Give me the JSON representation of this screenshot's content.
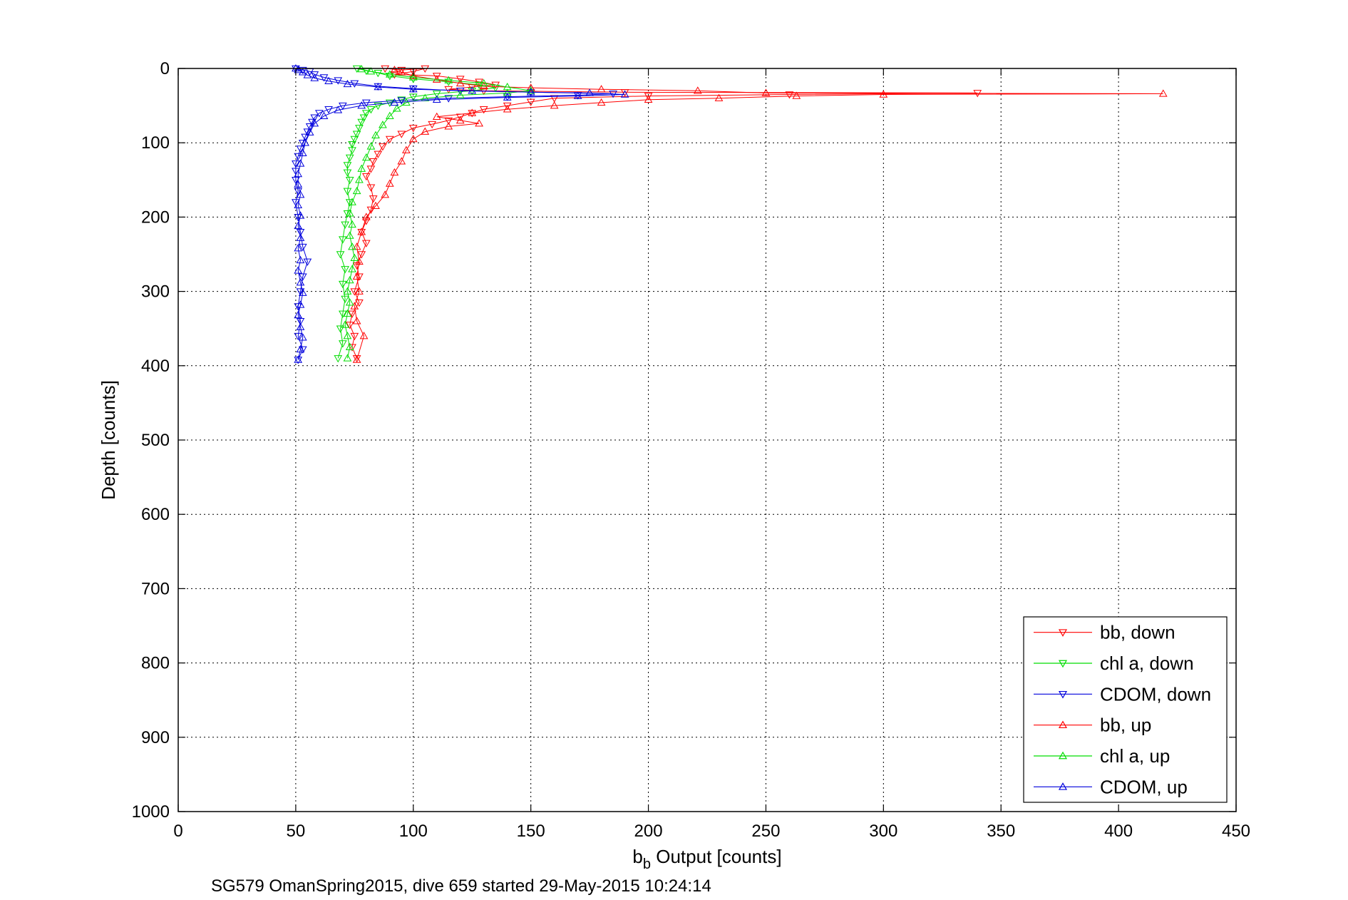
{
  "chart_data": {
    "type": "line",
    "xlabel_main": "b",
    "xlabel_sub": "b",
    "xlabel_rest": " Output [counts]",
    "ylabel": "Depth [counts]",
    "caption": "SG579 OmanSpring2015, dive 659 started 29-May-2015 10:24:14",
    "xlim": [
      0,
      450
    ],
    "ylim": [
      0,
      1000
    ],
    "y_reversed": true,
    "grid": true,
    "legend_position": "bottom-right",
    "xticks": [
      0,
      50,
      100,
      150,
      200,
      250,
      300,
      350,
      400,
      450
    ],
    "yticks": [
      0,
      100,
      200,
      300,
      400,
      500,
      600,
      700,
      800,
      900,
      1000
    ],
    "series": [
      {
        "name": "bb, down",
        "color": "#ff0000",
        "marker": "triangle-down",
        "points": [
          [
            88,
            0
          ],
          [
            95,
            2
          ],
          [
            105,
            0
          ],
          [
            100,
            4
          ],
          [
            92,
            8
          ],
          [
            110,
            10
          ],
          [
            120,
            14
          ],
          [
            128,
            18
          ],
          [
            135,
            22
          ],
          [
            125,
            25
          ],
          [
            115,
            28
          ],
          [
            130,
            30
          ],
          [
            190,
            32
          ],
          [
            340,
            33
          ],
          [
            260,
            35
          ],
          [
            200,
            37
          ],
          [
            160,
            40
          ],
          [
            150,
            45
          ],
          [
            140,
            50
          ],
          [
            130,
            55
          ],
          [
            125,
            60
          ],
          [
            120,
            65
          ],
          [
            115,
            70
          ],
          [
            108,
            75
          ],
          [
            100,
            80
          ],
          [
            95,
            88
          ],
          [
            90,
            95
          ],
          [
            87,
            105
          ],
          [
            85,
            115
          ],
          [
            83,
            125
          ],
          [
            82,
            135
          ],
          [
            80,
            145
          ],
          [
            82,
            160
          ],
          [
            83,
            175
          ],
          [
            82,
            190
          ],
          [
            80,
            205
          ],
          [
            78,
            220
          ],
          [
            80,
            235
          ],
          [
            78,
            250
          ],
          [
            76,
            265
          ],
          [
            77,
            280
          ],
          [
            75,
            300
          ],
          [
            77,
            315
          ],
          [
            74,
            330
          ],
          [
            73,
            345
          ],
          [
            75,
            360
          ],
          [
            74,
            375
          ],
          [
            76,
            390
          ]
        ]
      },
      {
        "name": "chl a, down",
        "color": "#00dd00",
        "marker": "triangle-down",
        "points": [
          [
            76,
            0
          ],
          [
            80,
            3
          ],
          [
            85,
            6
          ],
          [
            90,
            10
          ],
          [
            100,
            14
          ],
          [
            115,
            18
          ],
          [
            128,
            22
          ],
          [
            135,
            26
          ],
          [
            125,
            30
          ],
          [
            110,
            34
          ],
          [
            100,
            38
          ],
          [
            95,
            42
          ],
          [
            90,
            46
          ],
          [
            85,
            50
          ],
          [
            82,
            55
          ],
          [
            80,
            60
          ],
          [
            79,
            66
          ],
          [
            78,
            72
          ],
          [
            77,
            80
          ],
          [
            76,
            88
          ],
          [
            75,
            95
          ],
          [
            74,
            102
          ],
          [
            74,
            110
          ],
          [
            73,
            120
          ],
          [
            72,
            130
          ],
          [
            72,
            140
          ],
          [
            73,
            150
          ],
          [
            72,
            165
          ],
          [
            73,
            180
          ],
          [
            72,
            195
          ],
          [
            71,
            210
          ],
          [
            70,
            230
          ],
          [
            69,
            250
          ],
          [
            71,
            270
          ],
          [
            70,
            290
          ],
          [
            71,
            310
          ],
          [
            70,
            330
          ],
          [
            69,
            350
          ],
          [
            70,
            370
          ],
          [
            68,
            390
          ]
        ]
      },
      {
        "name": "CDOM, down",
        "color": "#0000dd",
        "marker": "triangle-down",
        "points": [
          [
            50,
            0
          ],
          [
            53,
            2
          ],
          [
            56,
            4
          ],
          [
            58,
            8
          ],
          [
            62,
            12
          ],
          [
            68,
            16
          ],
          [
            75,
            20
          ],
          [
            85,
            24
          ],
          [
            100,
            27
          ],
          [
            120,
            30
          ],
          [
            150,
            32
          ],
          [
            185,
            34
          ],
          [
            170,
            36
          ],
          [
            140,
            38
          ],
          [
            115,
            40
          ],
          [
            95,
            43
          ],
          [
            80,
            46
          ],
          [
            70,
            50
          ],
          [
            64,
            55
          ],
          [
            60,
            60
          ],
          [
            58,
            66
          ],
          [
            57,
            72
          ],
          [
            56,
            78
          ],
          [
            55,
            85
          ],
          [
            54,
            92
          ],
          [
            53,
            100
          ],
          [
            52,
            108
          ],
          [
            51,
            118
          ],
          [
            50,
            128
          ],
          [
            50,
            138
          ],
          [
            50,
            150
          ],
          [
            51,
            165
          ],
          [
            50,
            180
          ],
          [
            51,
            200
          ],
          [
            52,
            220
          ],
          [
            53,
            240
          ],
          [
            55,
            260
          ],
          [
            53,
            280
          ],
          [
            52,
            300
          ],
          [
            51,
            320
          ],
          [
            52,
            340
          ],
          [
            51,
            360
          ],
          [
            53,
            378
          ],
          [
            51,
            392
          ]
        ]
      },
      {
        "name": "bb, up",
        "color": "#ff0000",
        "marker": "triangle-up",
        "points": [
          [
            76,
            392
          ],
          [
            79,
            360
          ],
          [
            76,
            340
          ],
          [
            75,
            320
          ],
          [
            77,
            300
          ],
          [
            76,
            280
          ],
          [
            77,
            260
          ],
          [
            76,
            240
          ],
          [
            78,
            220
          ],
          [
            80,
            200
          ],
          [
            84,
            185
          ],
          [
            88,
            170
          ],
          [
            90,
            155
          ],
          [
            92,
            140
          ],
          [
            95,
            125
          ],
          [
            97,
            110
          ],
          [
            100,
            95
          ],
          [
            105,
            85
          ],
          [
            115,
            78
          ],
          [
            128,
            74
          ],
          [
            120,
            70
          ],
          [
            110,
            65
          ],
          [
            125,
            60
          ],
          [
            140,
            55
          ],
          [
            160,
            50
          ],
          [
            180,
            46
          ],
          [
            200,
            42
          ],
          [
            230,
            40
          ],
          [
            263,
            37
          ],
          [
            300,
            35
          ],
          [
            419,
            34
          ],
          [
            250,
            33
          ],
          [
            221,
            30
          ],
          [
            180,
            28
          ],
          [
            150,
            26
          ],
          [
            130,
            24
          ],
          [
            120,
            20
          ],
          [
            110,
            15
          ],
          [
            100,
            10
          ],
          [
            95,
            5
          ],
          [
            92,
            2
          ]
        ]
      },
      {
        "name": "chl a, up",
        "color": "#00dd00",
        "marker": "triangle-up",
        "points": [
          [
            72,
            390
          ],
          [
            73,
            375
          ],
          [
            72,
            360
          ],
          [
            71,
            345
          ],
          [
            72,
            330
          ],
          [
            73,
            315
          ],
          [
            72,
            300
          ],
          [
            73,
            285
          ],
          [
            74,
            270
          ],
          [
            75,
            255
          ],
          [
            74,
            240
          ],
          [
            73,
            225
          ],
          [
            74,
            210
          ],
          [
            73,
            195
          ],
          [
            74,
            180
          ],
          [
            76,
            165
          ],
          [
            77,
            150
          ],
          [
            78,
            135
          ],
          [
            80,
            120
          ],
          [
            82,
            105
          ],
          [
            84,
            90
          ],
          [
            87,
            76
          ],
          [
            90,
            64
          ],
          [
            93,
            54
          ],
          [
            97,
            46
          ],
          [
            105,
            40
          ],
          [
            120,
            36
          ],
          [
            140,
            33
          ],
          [
            150,
            30
          ],
          [
            140,
            25
          ],
          [
            130,
            20
          ],
          [
            115,
            16
          ],
          [
            100,
            12
          ],
          [
            90,
            8
          ],
          [
            82,
            4
          ],
          [
            78,
            1
          ]
        ]
      },
      {
        "name": "CDOM, up",
        "color": "#0000dd",
        "marker": "triangle-up",
        "points": [
          [
            51,
            392
          ],
          [
            52,
            378
          ],
          [
            53,
            362
          ],
          [
            52,
            348
          ],
          [
            51,
            332
          ],
          [
            52,
            318
          ],
          [
            53,
            302
          ],
          [
            52,
            288
          ],
          [
            51,
            272
          ],
          [
            52,
            258
          ],
          [
            51,
            242
          ],
          [
            52,
            228
          ],
          [
            51,
            212
          ],
          [
            52,
            198
          ],
          [
            51,
            184
          ],
          [
            52,
            170
          ],
          [
            51,
            156
          ],
          [
            51,
            142
          ],
          [
            52,
            128
          ],
          [
            53,
            114
          ],
          [
            54,
            100
          ],
          [
            56,
            86
          ],
          [
            58,
            74
          ],
          [
            62,
            64
          ],
          [
            68,
            56
          ],
          [
            78,
            50
          ],
          [
            92,
            46
          ],
          [
            110,
            42
          ],
          [
            140,
            39
          ],
          [
            170,
            37
          ],
          [
            190,
            35
          ],
          [
            175,
            33
          ],
          [
            150,
            32
          ],
          [
            125,
            30
          ],
          [
            100,
            28
          ],
          [
            85,
            25
          ],
          [
            72,
            21
          ],
          [
            64,
            17
          ],
          [
            58,
            13
          ],
          [
            55,
            9
          ],
          [
            53,
            5
          ],
          [
            51,
            2
          ],
          [
            50,
            0
          ]
        ]
      }
    ]
  }
}
